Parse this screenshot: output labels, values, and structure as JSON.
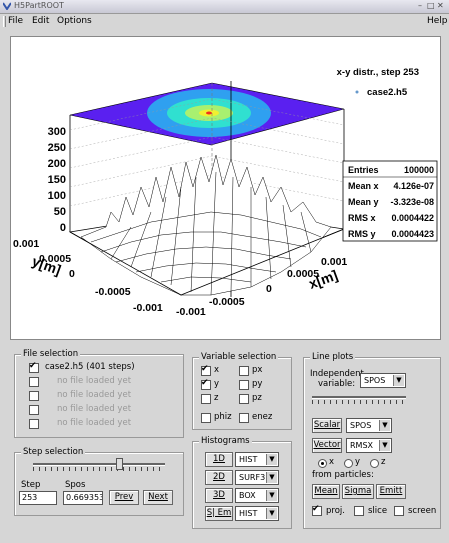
{
  "window": {
    "title": "H5PartROOT"
  },
  "menu": {
    "file": "File",
    "edit": "Edit",
    "options": "Options",
    "help": "Help"
  },
  "plot": {
    "title": "x-y distr., step 253",
    "legend": "case2.h5",
    "stats": [
      {
        "label": "Entries",
        "value": "100000"
      },
      {
        "label": "Mean x",
        "value": "4.126e-07"
      },
      {
        "label": "Mean y",
        "value": "-3.323e-08"
      },
      {
        "label": "RMS x",
        "value": "0.0004422"
      },
      {
        "label": "RMS y",
        "value": "0.0004423"
      }
    ],
    "z_ticks": [
      "300",
      "250",
      "200",
      "150",
      "100",
      "50",
      "0"
    ],
    "y_ticks": [
      "0.001",
      "0.0005",
      "0",
      "-0.0005",
      "-0.001"
    ],
    "x_ticks": [
      "-0.001",
      "-0.0005",
      "0",
      "0.0005",
      "0.001"
    ],
    "y_axis_label": "y[m]",
    "x_axis_label": "x[m]"
  },
  "file_selection": {
    "title": "File selection",
    "files": [
      {
        "label": "case2.h5 (401 steps)",
        "checked": true,
        "loaded": true
      },
      {
        "label": "no file loaded yet",
        "checked": false,
        "loaded": false
      },
      {
        "label": "no file loaded yet",
        "checked": false,
        "loaded": false
      },
      {
        "label": "no file loaded yet",
        "checked": false,
        "loaded": false
      },
      {
        "label": "no file loaded yet",
        "checked": false,
        "loaded": false
      }
    ]
  },
  "step_selection": {
    "title": "Step selection",
    "step_label": "Step",
    "spos_label": "Spos",
    "step_value": "253",
    "spos_value": "0.669353",
    "prev": "Prev",
    "next": "Next",
    "slider_fraction": 0.63
  },
  "variable_selection": {
    "title": "Variable selection",
    "vars": [
      {
        "label": "x",
        "checked": true
      },
      {
        "label": "px",
        "checked": false
      },
      {
        "label": "y",
        "checked": true
      },
      {
        "label": "py",
        "checked": false
      },
      {
        "label": "z",
        "checked": false
      },
      {
        "label": "pz",
        "checked": false
      },
      {
        "label": "phiz",
        "checked": false
      },
      {
        "label": "enez",
        "checked": false
      }
    ]
  },
  "histograms": {
    "title": "Histograms",
    "rows": [
      {
        "button": "1D",
        "option": "HIST"
      },
      {
        "button": "2D",
        "option": "SURF3"
      },
      {
        "button": "3D",
        "option": "BOX"
      },
      {
        "button": "S| Em",
        "option": "HIST"
      }
    ]
  },
  "line_plots": {
    "title": "Line plots",
    "independent_label_1": "Independent",
    "independent_label_2": "variable:",
    "independent_value": "SPOS",
    "scalar_button": "Scalar",
    "scalar_value": "SPOS",
    "vector_button": "Vector",
    "vector_value": "RMSX",
    "radios": [
      "x",
      "y",
      "z"
    ],
    "radio_selected": "x",
    "from_particles": "from particles:",
    "mean": "Mean",
    "sigma": "Sigma",
    "emitt": "Emitt",
    "proj": "proj.",
    "proj_checked": true,
    "slice": "slice",
    "screen": "screen"
  }
}
